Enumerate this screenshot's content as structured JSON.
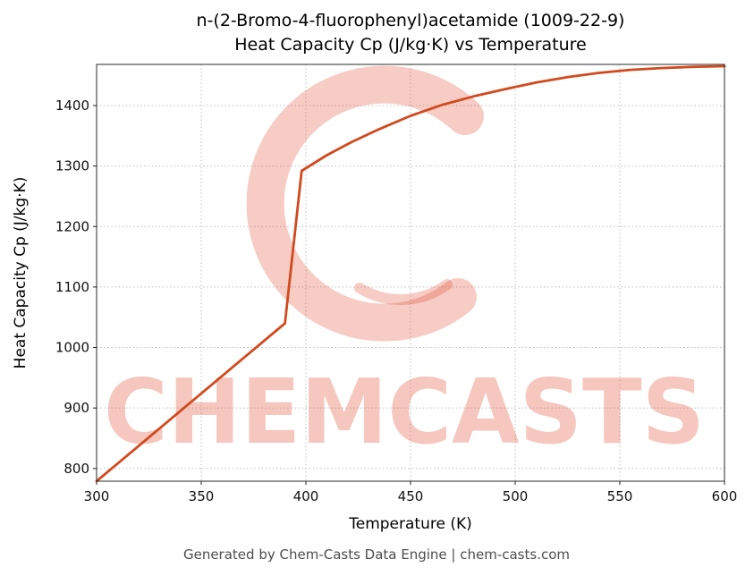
{
  "page": {
    "footer": "Generated by Chem-Casts Data Engine | chem-casts.com"
  },
  "watermark": {
    "text": "CHEMCASTS",
    "color": "#e0492b"
  },
  "chart_data": {
    "type": "line",
    "title": "n-(2-Bromo-4-fluorophenyl)acetamide (1009-22-9)",
    "subtitle": "Heat Capacity Cp (J/kg·K) vs Temperature",
    "xlabel": "Temperature (K)",
    "ylabel": "Heat Capacity Cp (J/kg·K)",
    "xlim": [
      300,
      600
    ],
    "ylim": [
      779,
      1468
    ],
    "xticks": [
      300,
      350,
      400,
      450,
      500,
      550,
      600
    ],
    "yticks": [
      800,
      900,
      1000,
      1100,
      1200,
      1300,
      1400
    ],
    "grid": true,
    "legend": "none",
    "line_color": "#d14a1e",
    "series": [
      {
        "name": "Heat Capacity Cp",
        "points": [
          [
            300,
            779
          ],
          [
            350,
            924
          ],
          [
            390,
            1040
          ],
          [
            398,
            1292
          ],
          [
            410,
            1318
          ],
          [
            422,
            1340
          ],
          [
            435,
            1361
          ],
          [
            450,
            1383
          ],
          [
            465,
            1401
          ],
          [
            480,
            1415
          ],
          [
            495,
            1427
          ],
          [
            510,
            1438
          ],
          [
            525,
            1447
          ],
          [
            540,
            1454
          ],
          [
            555,
            1459
          ],
          [
            570,
            1462
          ],
          [
            585,
            1464
          ],
          [
            600,
            1465
          ]
        ]
      }
    ]
  }
}
